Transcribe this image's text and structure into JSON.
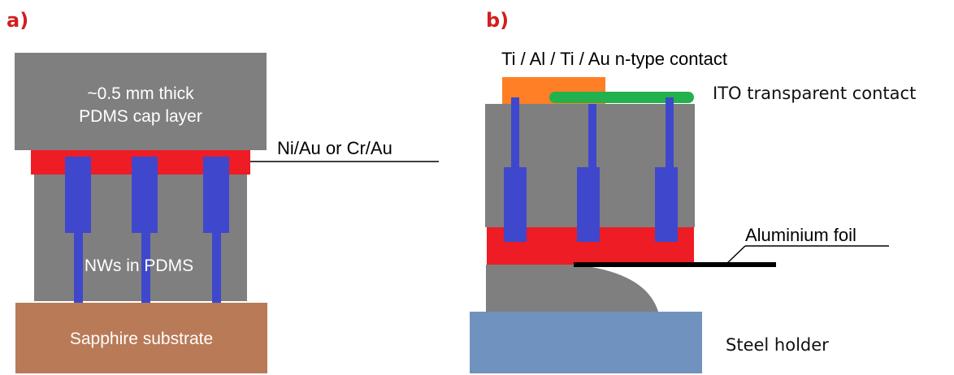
{
  "panel_a": {
    "label": "a)",
    "cap_layer_line1": "~0.5 mm thick",
    "cap_layer_line2": "PDMS cap layer",
    "metal_contact": "Ni/Au or Cr/Au",
    "nws_label": "NWs in PDMS",
    "substrate": "Sapphire substrate",
    "colors": {
      "cap": "#7f7f7f",
      "metal": "#ee1c24",
      "nw": "#3f48cc",
      "substrate": "#b97a57",
      "pdms": "#7f7f7f"
    }
  },
  "panel_b": {
    "label": "b)",
    "n_contact": "Ti / Al / Ti / Au n-type contact",
    "ito_contact": "ITO transparent contact",
    "foil": "Aluminium foil",
    "holder": "Steel holder",
    "colors": {
      "n_contact": "#ff7f27",
      "ito": "#22b14c",
      "pdms": "#7f7f7f",
      "metal": "#ee1c24",
      "nw": "#3f48cc",
      "holder": "#7092be",
      "foil": "#000000"
    }
  }
}
